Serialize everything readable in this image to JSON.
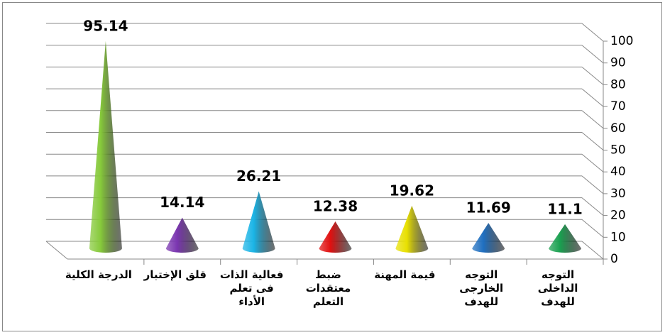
{
  "chart_data": {
    "type": "cone",
    "categories": [
      "التوجه الداخلى للهدف",
      "التوجه الخارجى للهدف",
      "قيمة المهنة",
      "ضبط معتقدات التعلم",
      "فعالية الذات فى تعلم الأداء",
      "قلق الإختبار",
      "الدرجة الكلية"
    ],
    "values": [
      11.1,
      11.69,
      19.62,
      12.38,
      26.21,
      14.14,
      95.14
    ],
    "colors": [
      "#1aa050",
      "#1f6fc0",
      "#e8e000",
      "#e01010",
      "#1ab4e6",
      "#7a35b0",
      "#86c93a"
    ],
    "ylim": [
      0,
      100
    ],
    "yticks": [
      0,
      10,
      20,
      30,
      40,
      50,
      60,
      70,
      80,
      90,
      100
    ],
    "grid": true
  }
}
